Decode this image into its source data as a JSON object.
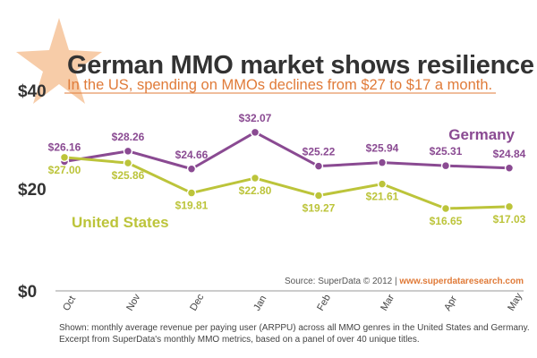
{
  "title": "German MMO market shows resilience",
  "subtitle": "In the US, spending on MMOs declines from $27 to $17 a month.",
  "source_text": "Source: SuperData © 2012 |",
  "source_url": "www.superdataresearch.com",
  "footnote": "Shown: monthly average revenue per paying user (ARPPU) across all MMO genres in the United States and Germany. Excerpt from SuperData's monthly MMO metrics, based on a panel of over 40 unique titles.",
  "colors": {
    "germany": "#8a4a92",
    "us": "#bcc43a",
    "star": "#f7cca8",
    "text": "#333333",
    "accent": "#e07b39"
  },
  "chart_data": {
    "type": "line",
    "categories": [
      "Oct",
      "Nov",
      "Dec",
      "Jan",
      "Feb",
      "Mar",
      "Apr",
      "May"
    ],
    "ylim": [
      0,
      40
    ],
    "yticks": [
      "$0",
      "$20",
      "$40"
    ],
    "grid": false,
    "series": [
      {
        "name": "Germany",
        "values": [
          26.16,
          28.26,
          24.66,
          32.07,
          25.22,
          25.94,
          25.31,
          24.84
        ],
        "labels": [
          "$26.16",
          "$28.26",
          "$24.66",
          "$32.07",
          "$25.22",
          "$25.94",
          "$25.31",
          "$24.84"
        ]
      },
      {
        "name": "United States",
        "values": [
          27.0,
          25.86,
          19.81,
          22.8,
          19.27,
          21.61,
          16.65,
          17.03
        ],
        "labels": [
          "$27.00",
          "$25.86",
          "$19.81",
          "$22.80",
          "$19.27",
          "$21.61",
          "$16.65",
          "$17.03"
        ]
      }
    ]
  }
}
